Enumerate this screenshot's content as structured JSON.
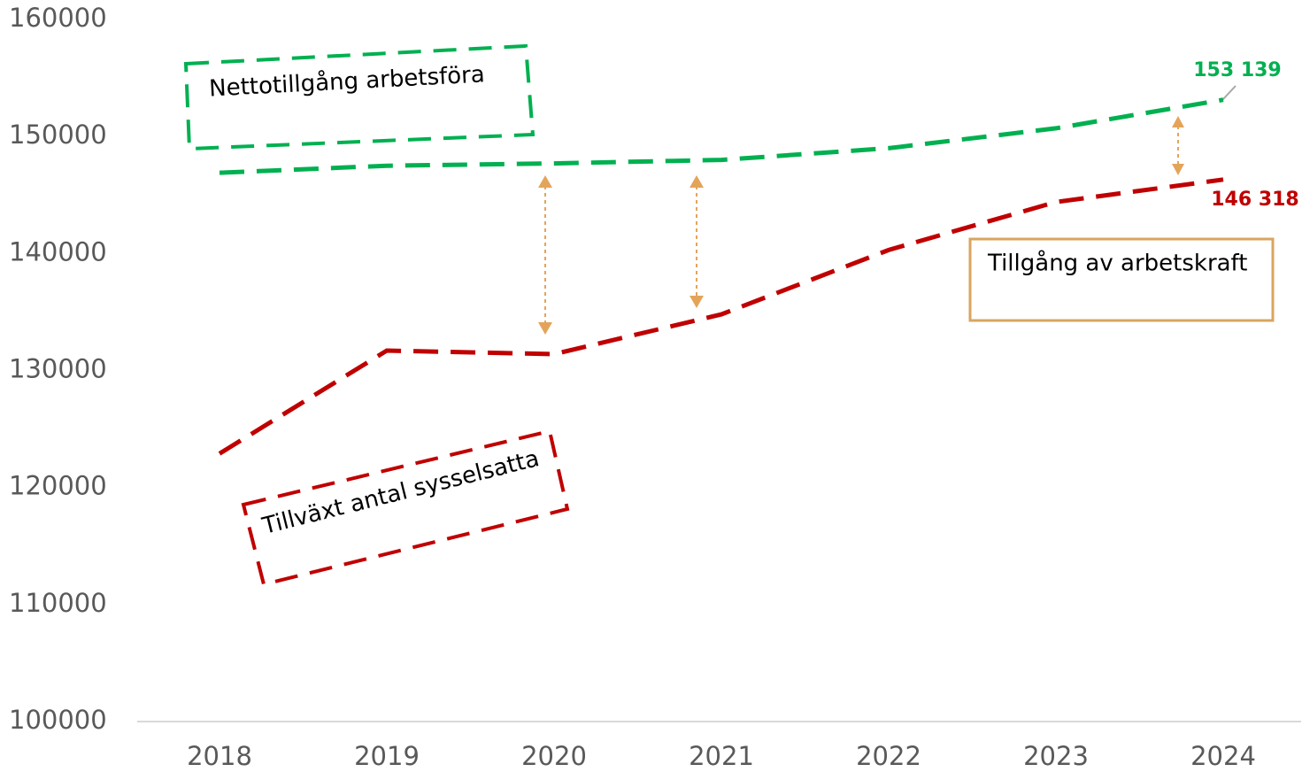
{
  "chart_data": {
    "type": "line",
    "categories": [
      "2018",
      "2019",
      "2020",
      "2021",
      "2022",
      "2023",
      "2024"
    ],
    "series": [
      {
        "name": "Nettotillgång arbetsföra",
        "color": "#00b050",
        "values": [
          146900,
          147500,
          147700,
          148000,
          149000,
          150700,
          153139
        ],
        "value_labels": [
          null,
          null,
          null,
          null,
          null,
          null,
          "153 139"
        ]
      },
      {
        "name": "Tillväxt antal sysselsatta",
        "color": "#c00000",
        "values": [
          122900,
          131700,
          131400,
          134800,
          140300,
          144400,
          146318
        ],
        "value_labels": [
          null,
          null,
          null,
          null,
          null,
          null,
          "146 318"
        ]
      }
    ],
    "annotations": [
      "Tillgång av arbetskraft"
    ],
    "ylim": [
      100000,
      160000
    ],
    "yticks": [
      100000,
      110000,
      120000,
      130000,
      140000,
      150000,
      160000
    ],
    "grid": false
  }
}
